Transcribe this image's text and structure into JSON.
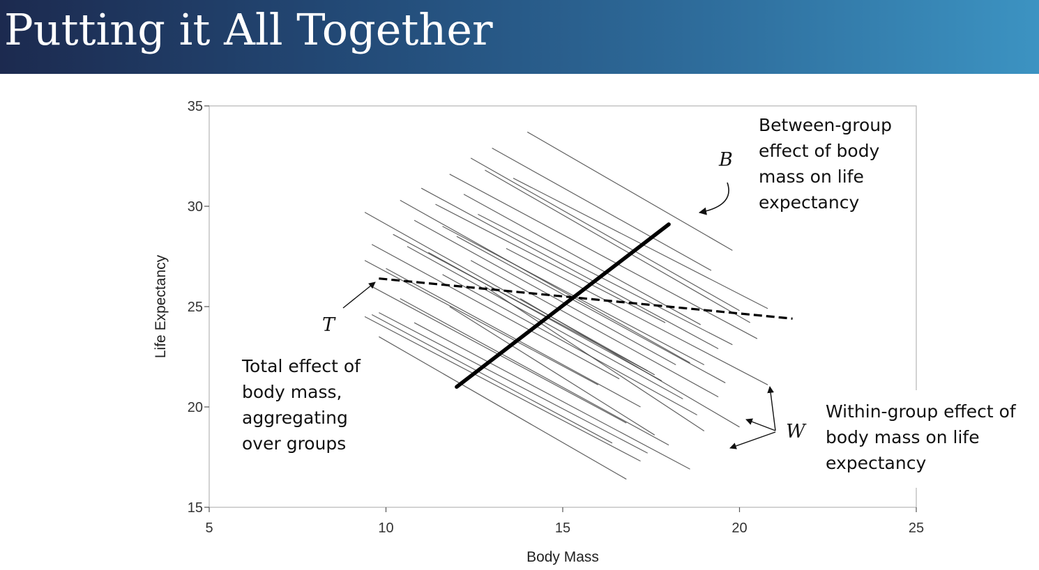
{
  "slide": {
    "title": "Putting it All Together"
  },
  "chart_data": {
    "type": "line",
    "xlabel": "Body Mass",
    "ylabel": "Life Expectancy",
    "xlim": [
      5,
      25
    ],
    "ylim": [
      15,
      35
    ],
    "xticks": [
      5,
      10,
      15,
      20,
      25
    ],
    "yticks": [
      15,
      20,
      25,
      30,
      35
    ],
    "grid": false,
    "legend": "none",
    "colors": {
      "within": "#444444",
      "between": "#000000",
      "total": "#000000"
    },
    "between_line": {
      "x": [
        12,
        18
      ],
      "y": [
        21.0,
        29.1
      ]
    },
    "total_line": {
      "x": [
        9.8,
        21.5
      ],
      "y": [
        26.4,
        24.4
      ],
      "style": "dashed"
    },
    "within_lines": [
      {
        "x": [
          14.0,
          19.8
        ],
        "y": [
          33.7,
          27.8
        ]
      },
      {
        "x": [
          13.0,
          19.2
        ],
        "y": [
          32.9,
          26.8
        ]
      },
      {
        "x": [
          12.4,
          20.0
        ],
        "y": [
          32.4,
          24.8
        ]
      },
      {
        "x": [
          12.8,
          20.3
        ],
        "y": [
          31.8,
          24.2
        ]
      },
      {
        "x": [
          11.8,
          20.5
        ],
        "y": [
          31.6,
          23.4
        ]
      },
      {
        "x": [
          13.6,
          20.8
        ],
        "y": [
          31.4,
          24.9
        ]
      },
      {
        "x": [
          11.0,
          19.4
        ],
        "y": [
          30.9,
          22.9
        ]
      },
      {
        "x": [
          12.2,
          18.9
        ],
        "y": [
          30.6,
          24.1
        ]
      },
      {
        "x": [
          10.4,
          18.6
        ],
        "y": [
          30.3,
          22.2
        ]
      },
      {
        "x": [
          11.4,
          17.9
        ],
        "y": [
          30.1,
          24.2
        ]
      },
      {
        "x": [
          9.4,
          17.6
        ],
        "y": [
          29.7,
          21.6
        ]
      },
      {
        "x": [
          12.6,
          19.8
        ],
        "y": [
          29.6,
          23.1
        ]
      },
      {
        "x": [
          10.8,
          18.2
        ],
        "y": [
          29.3,
          22.1
        ]
      },
      {
        "x": [
          11.6,
          19.0
        ],
        "y": [
          29.0,
          22.1
        ]
      },
      {
        "x": [
          10.2,
          17.4
        ],
        "y": [
          28.6,
          21.8
        ]
      },
      {
        "x": [
          12.0,
          19.6
        ],
        "y": [
          28.5,
          21.2
        ]
      },
      {
        "x": [
          9.6,
          16.6
        ],
        "y": [
          28.1,
          21.4
        ]
      },
      {
        "x": [
          10.6,
          18.4
        ],
        "y": [
          28.0,
          20.4
        ]
      },
      {
        "x": [
          11.2,
          17.8
        ],
        "y": [
          27.7,
          21.3
        ]
      },
      {
        "x": [
          9.4,
          16.0
        ],
        "y": [
          27.3,
          21.1
        ]
      },
      {
        "x": [
          12.4,
          19.4
        ],
        "y": [
          27.3,
          20.5
        ]
      },
      {
        "x": [
          10.0,
          17.2
        ],
        "y": [
          26.9,
          20.0
        ]
      },
      {
        "x": [
          11.6,
          18.8
        ],
        "y": [
          26.6,
          19.6
        ]
      },
      {
        "x": [
          9.6,
          16.8
        ],
        "y": [
          26.0,
          19.2
        ]
      },
      {
        "x": [
          10.4,
          18.0
        ],
        "y": [
          25.4,
          18.1
        ]
      },
      {
        "x": [
          9.8,
          17.4
        ],
        "y": [
          24.7,
          17.7
        ]
      },
      {
        "x": [
          9.6,
          16.4
        ],
        "y": [
          24.6,
          18.2
        ]
      },
      {
        "x": [
          9.4,
          17.2
        ],
        "y": [
          24.5,
          17.3
        ]
      },
      {
        "x": [
          10.8,
          18.6
        ],
        "y": [
          24.2,
          16.9
        ]
      },
      {
        "x": [
          9.8,
          16.8
        ],
        "y": [
          23.5,
          16.4
        ]
      },
      {
        "x": [
          13.4,
          20.8
        ],
        "y": [
          27.9,
          21.1
        ]
      },
      {
        "x": [
          12.8,
          19.0
        ],
        "y": [
          26.0,
          18.8
        ]
      },
      {
        "x": [
          13.8,
          20.0
        ],
        "y": [
          25.4,
          19.0
        ]
      },
      {
        "x": [
          11.8,
          17.6
        ],
        "y": [
          25.0,
          18.6
        ]
      }
    ],
    "annotations": {
      "between": {
        "letter": "B",
        "text": [
          "Between-group",
          "effect of body",
          "mass on life",
          "expectancy"
        ]
      },
      "total": {
        "letter": "T",
        "text": [
          "Total effect of",
          "body mass,",
          "aggregating",
          "over groups"
        ]
      },
      "within": {
        "letter": "W",
        "text": [
          "Within-group effect of",
          "body mass on life",
          "expectancy"
        ]
      }
    }
  }
}
